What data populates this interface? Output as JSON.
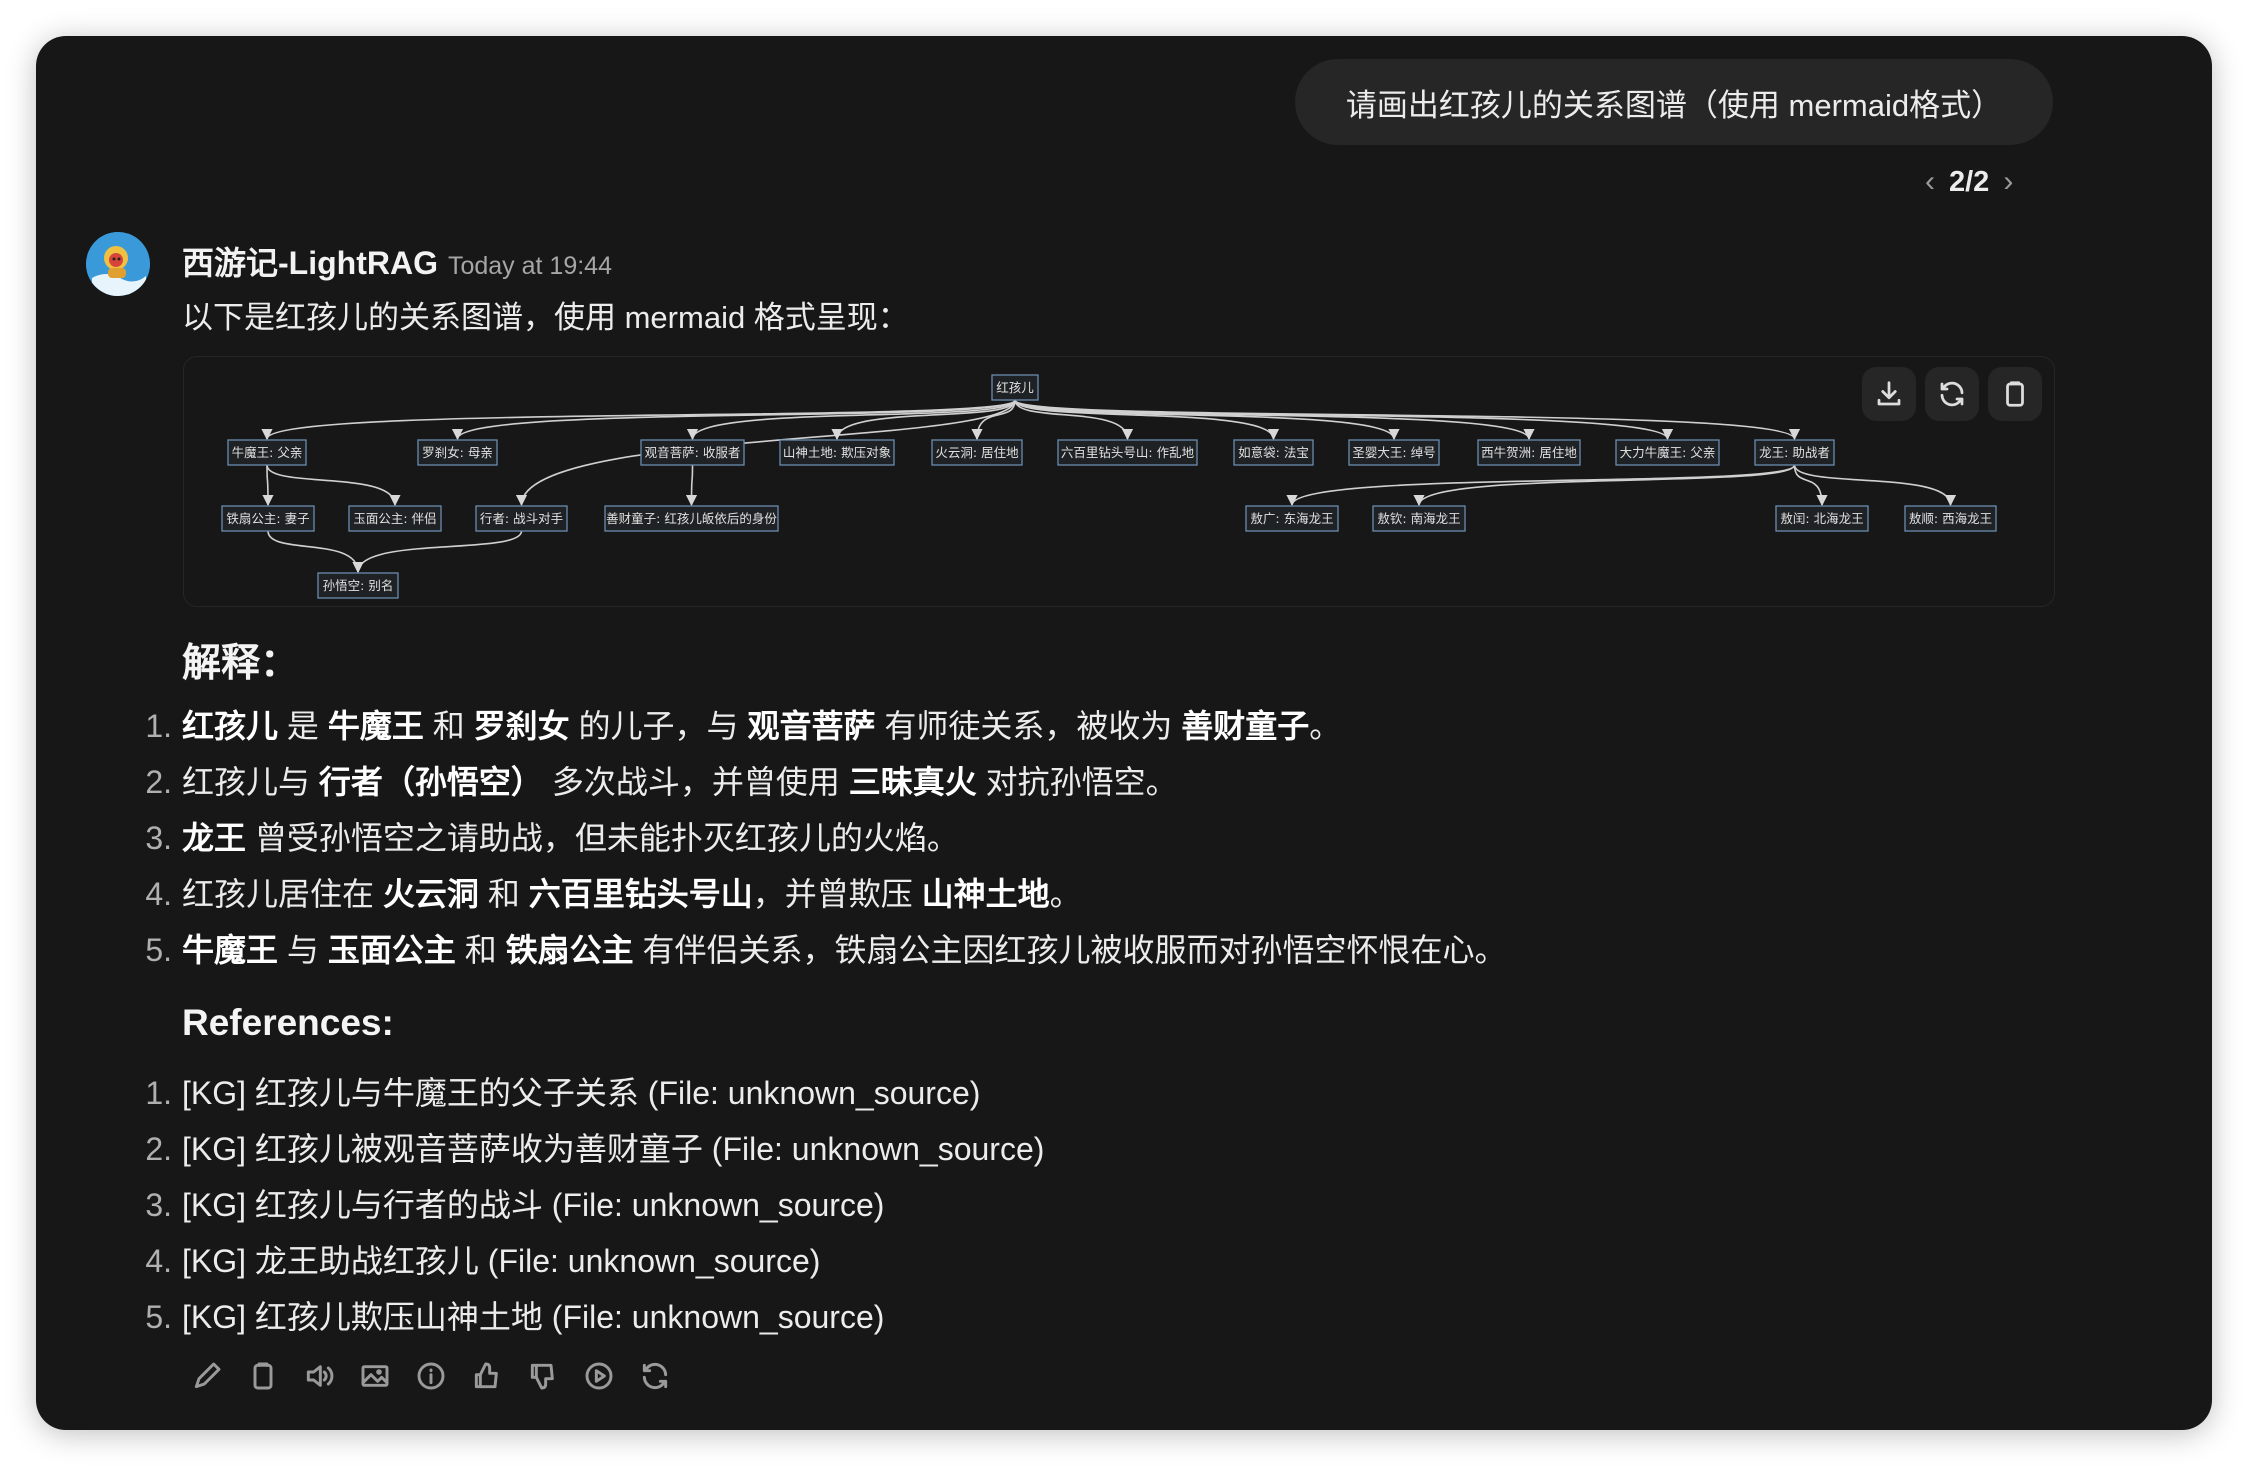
{
  "user_message": "请画出红孩儿的关系图谱（使用 mermaid格式）",
  "pager": {
    "current": "2/2",
    "prev_icon": "chevron-left-icon",
    "next_icon": "chevron-right-icon"
  },
  "assistant": {
    "name": "西游记-LightRAG",
    "timestamp": "Today at 19:44",
    "intro": "以下是红孩儿的关系图谱，使用 mermaid 格式呈现："
  },
  "diagram": {
    "toolbar": [
      {
        "name": "download",
        "icon": "download-icon"
      },
      {
        "name": "rerender",
        "icon": "refresh-icon"
      },
      {
        "name": "copy",
        "icon": "clipboard-icon"
      }
    ],
    "nodes": {
      "hhe": "红孩儿",
      "nmw": "牛魔王: 父亲",
      "lcn": "罗刹女: 母亲",
      "gy": "观音菩萨: 收服者",
      "ss": "山神土地: 欺压对象",
      "hyd": "火云洞: 居住地",
      "blz": "六百里钻头号山: 作乱地",
      "ryd": "如意袋: 法宝",
      "sy": "圣婴大王: 绰号",
      "xn": "西牛贺洲: 居住地",
      "dl": "大力牛魔王: 父亲",
      "lw": "龙王: 助战者",
      "ts": "铁扇公主: 妻子",
      "ym": "玉面公主: 伴侣",
      "xz": "行者: 战斗对手",
      "sc": "善财童子: 红孩儿皈依后的身份",
      "ag": "敖广: 东海龙王",
      "aq": "敖钦: 南海龙王",
      "ar": "敖闰: 北海龙王",
      "as": "敖顺: 西海龙王",
      "swk": "孙悟空: 别名"
    },
    "edges": [
      [
        "hhe",
        "nmw"
      ],
      [
        "hhe",
        "lcn"
      ],
      [
        "hhe",
        "xz"
      ],
      [
        "hhe",
        "gy"
      ],
      [
        "hhe",
        "ss"
      ],
      [
        "hhe",
        "hyd"
      ],
      [
        "hhe",
        "blz"
      ],
      [
        "hhe",
        "ryd"
      ],
      [
        "hhe",
        "sy"
      ],
      [
        "hhe",
        "xn"
      ],
      [
        "hhe",
        "dl"
      ],
      [
        "hhe",
        "lw"
      ],
      [
        "nmw",
        "ts"
      ],
      [
        "nmw",
        "ym"
      ],
      [
        "gy",
        "sc"
      ],
      [
        "ts",
        "swk"
      ],
      [
        "xz",
        "swk"
      ],
      [
        "lw",
        "ag"
      ],
      [
        "lw",
        "aq"
      ],
      [
        "lw",
        "ar"
      ],
      [
        "lw",
        "as"
      ]
    ]
  },
  "explanation": {
    "heading": "解释：",
    "items": [
      [
        {
          "t": "红孩儿",
          "b": true
        },
        {
          "t": " 是 "
        },
        {
          "t": "牛魔王",
          "b": true
        },
        {
          "t": " 和 "
        },
        {
          "t": "罗刹女",
          "b": true
        },
        {
          "t": " 的儿子，与 "
        },
        {
          "t": "观音菩萨",
          "b": true
        },
        {
          "t": " 有师徒关系，被收为 "
        },
        {
          "t": "善财童子",
          "b": true
        },
        {
          "t": "。"
        }
      ],
      [
        {
          "t": "红孩儿与 "
        },
        {
          "t": "行者（孙悟空）",
          "b": true
        },
        {
          "t": " 多次战斗，并曾使用 "
        },
        {
          "t": "三昧真火",
          "b": true
        },
        {
          "t": " 对抗孙悟空。"
        }
      ],
      [
        {
          "t": "龙王",
          "b": true
        },
        {
          "t": " 曾受孙悟空之请助战，但未能扑灭红孩儿的火焰。"
        }
      ],
      [
        {
          "t": "红孩儿居住在 "
        },
        {
          "t": "火云洞",
          "b": true
        },
        {
          "t": " 和 "
        },
        {
          "t": "六百里钻头号山",
          "b": true
        },
        {
          "t": "，并曾欺压 "
        },
        {
          "t": "山神土地",
          "b": true
        },
        {
          "t": "。"
        }
      ],
      [
        {
          "t": "牛魔王",
          "b": true
        },
        {
          "t": " 与 "
        },
        {
          "t": "玉面公主",
          "b": true
        },
        {
          "t": " 和 "
        },
        {
          "t": "铁扇公主",
          "b": true
        },
        {
          "t": " 有伴侣关系，铁扇公主因红孩儿被收服而对孙悟空怀恨在心。"
        }
      ]
    ]
  },
  "references": {
    "heading": "References:",
    "items": [
      "[KG] 红孩儿与牛魔王的父子关系 (File: unknown_source)",
      "[KG] 红孩儿被观音菩萨收为善财童子 (File: unknown_source)",
      "[KG] 红孩儿与行者的战斗 (File: unknown_source)",
      "[KG] 龙王助战红孩儿 (File: unknown_source)",
      "[KG] 红孩儿欺压山神土地 (File: unknown_source)"
    ]
  },
  "actions": [
    "edit-icon",
    "copy-icon",
    "read-aloud-icon",
    "image-icon",
    "info-icon",
    "thumbs-up-icon",
    "thumbs-down-icon",
    "play-icon",
    "regenerate-icon"
  ]
}
